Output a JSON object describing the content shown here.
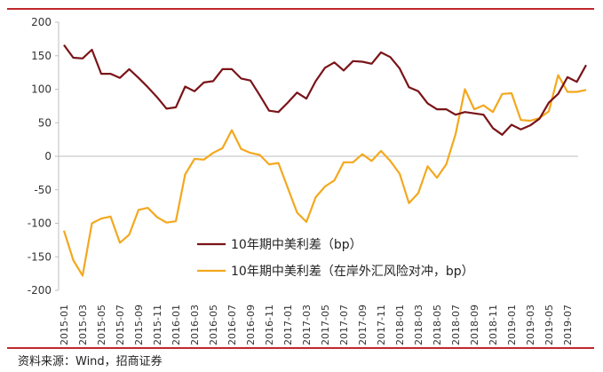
{
  "source_note": "资料来源：Wind，招商证券",
  "colors": {
    "series_1": "#7a1418",
    "series_2": "#f3a81e",
    "rule": "#c0282c",
    "axis": "#bfbfbf"
  },
  "chart_data": {
    "type": "line",
    "title": "",
    "xlabel": "",
    "ylabel": "",
    "ylim": [
      -200,
      200
    ],
    "y_ticks": [
      -200,
      -150,
      -100,
      -50,
      0,
      50,
      100,
      150,
      200
    ],
    "grid": false,
    "legend_position": "bottom-center, inside plot",
    "x_tick_labels": [
      "2015-01",
      "2015-03",
      "2015-05",
      "2015-07",
      "2015-09",
      "2015-11",
      "2016-01",
      "2016-03",
      "2016-05",
      "2016-07",
      "2016-09",
      "2016-11",
      "2017-01",
      "2017-03",
      "2017-05",
      "2017-07",
      "2017-09",
      "2017-11",
      "2018-01",
      "2018-03",
      "2018-05",
      "2018-07",
      "2018-09",
      "2018-11",
      "2019-01",
      "2019-03",
      "2019-05",
      "2019-07"
    ],
    "x_start": "2015-01",
    "x_end": "2019-08",
    "series": [
      {
        "name": "10年期中美利差（bp）",
        "values": [
          166,
          147,
          146,
          159,
          123,
          123,
          117,
          130,
          117,
          103,
          88,
          71,
          73,
          104,
          97,
          110,
          112,
          130,
          130,
          116,
          113,
          91,
          68,
          66,
          80,
          95,
          86,
          112,
          132,
          140,
          128,
          142,
          141,
          138,
          155,
          148,
          131,
          103,
          97,
          79,
          70,
          70,
          62,
          66,
          64,
          62,
          42,
          32,
          47,
          40,
          46,
          56,
          80,
          93,
          118,
          111,
          136
        ]
      },
      {
        "name": "10年期中美利差（在岸外汇风险对冲，bp）",
        "values": [
          -111,
          -155,
          -178,
          -100,
          -93,
          -90,
          -129,
          -117,
          -80,
          -77,
          -91,
          -99,
          -97,
          -27,
          -4,
          -5,
          5,
          12,
          39,
          11,
          5,
          2,
          -12,
          -10,
          -47,
          -84,
          -98,
          -61,
          -45,
          -36,
          -9,
          -9,
          3,
          -7,
          8,
          -7,
          -26,
          -70,
          -55,
          -15,
          -32,
          -12,
          33,
          100,
          70,
          76,
          66,
          93,
          94,
          54,
          53,
          57,
          67,
          121,
          96,
          96,
          99
        ]
      }
    ]
  }
}
